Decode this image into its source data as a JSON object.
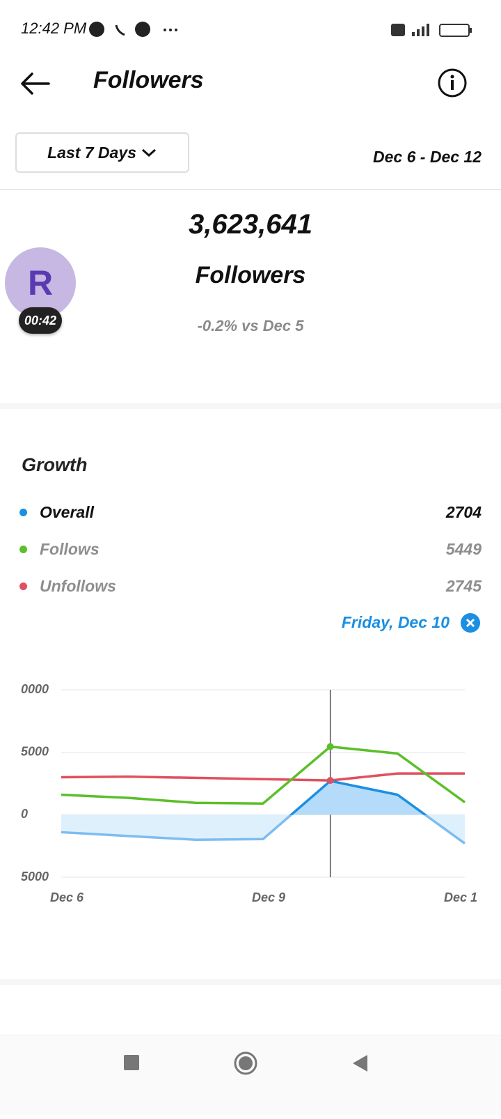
{
  "status_bar": {
    "time": "12:42 PM"
  },
  "header": {
    "title": "Followers"
  },
  "filter": {
    "period": "Last 7 Days",
    "range": "Dec 6 - Dec 12"
  },
  "summary": {
    "count": "3,623,641",
    "label": "Followers",
    "change": "-0.2% vs Dec 5"
  },
  "avatar": {
    "initial": "R",
    "timer": "00:42"
  },
  "growth": {
    "title": "Growth",
    "selected": "Friday, Dec 10"
  },
  "chart_data": {
    "type": "line",
    "categories": [
      "Dec 6",
      null,
      null,
      "Dec 9",
      null,
      null,
      "Dec 1"
    ],
    "series": [
      {
        "name": "Overall",
        "color": "#1a8fe3",
        "values": [
          -1400,
          -1700,
          -2000,
          -1950,
          2704,
          1600,
          -2300
        ]
      },
      {
        "name": "Follows",
        "color": "#5cbf2a",
        "values": [
          1600,
          1350,
          950,
          900,
          5449,
          4900,
          1000
        ]
      },
      {
        "name": "Unfollows",
        "color": "#e0505e",
        "values": [
          3000,
          3050,
          2950,
          2850,
          2745,
          3300,
          3300
        ]
      }
    ],
    "ylim": [
      -5000,
      10000
    ],
    "yticks": [
      {
        "value": 10000,
        "label": "0000"
      },
      {
        "value": 5000,
        "label": "5000"
      },
      0,
      {
        "value": -5000,
        "label": "5000"
      }
    ],
    "grid": true
  }
}
